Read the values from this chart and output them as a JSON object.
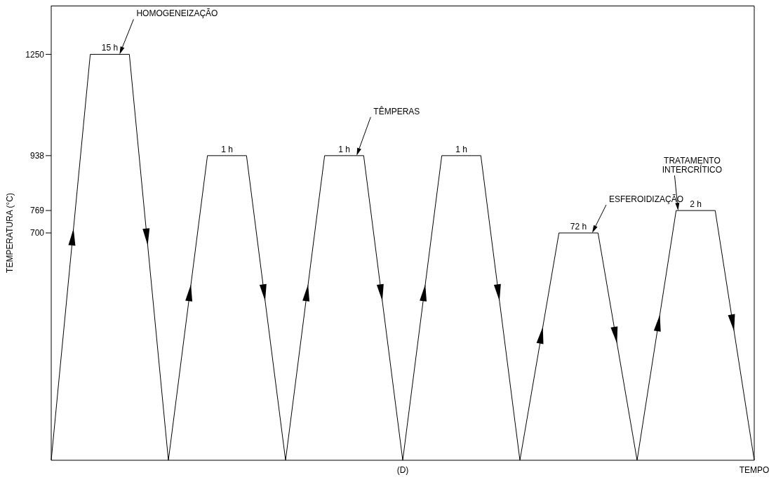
{
  "chart_data": {
    "type": "line",
    "xlabel": "TEMPO",
    "ylabel": "TEMPERATURA (°C)",
    "categories": [
      null,
      null,
      null,
      null,
      null,
      null,
      null,
      null,
      null,
      null,
      null,
      null,
      null,
      null,
      null,
      null,
      null,
      null,
      null
    ],
    "series": [
      {
        "color": "#000000",
        "values": [
          0,
          1250,
          1250,
          0,
          938,
          938,
          0,
          938,
          938,
          0,
          938,
          938,
          0,
          700,
          700,
          0,
          769,
          769,
          0
        ]
      }
    ],
    "ylim": [
      0,
      1400
    ],
    "yticks": [
      700,
      769,
      938,
      1250
    ],
    "grid": false,
    "annotations": [
      "HOMOGENEIZAÇÃO",
      "15 h",
      "TÊMPERAS",
      "1 h",
      "1 h",
      "1 h",
      "ESFEROIDIZAÇÃO",
      "72 h",
      "TRATAMENTO INTERCRÍTICO",
      "2 h",
      "(D)"
    ]
  }
}
